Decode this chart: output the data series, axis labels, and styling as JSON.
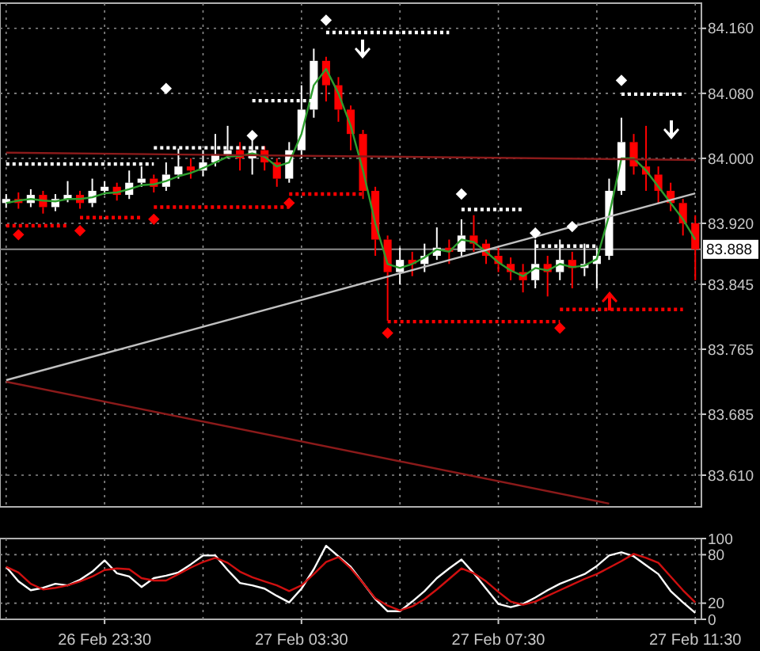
{
  "chart_data": [
    {
      "type": "candlestick",
      "grid": true,
      "tick_labels": "y",
      "categories": [
        null,
        null,
        null,
        null,
        null,
        null,
        null,
        null,
        null,
        null,
        null,
        null,
        null,
        null,
        null,
        null,
        null,
        null,
        null,
        null,
        null,
        null,
        null,
        null,
        null,
        null,
        null,
        null,
        null,
        null,
        null,
        null,
        null,
        null,
        null,
        null,
        null,
        null,
        null,
        null,
        null,
        null,
        null,
        null,
        null,
        null,
        null,
        null,
        null,
        null,
        null,
        null,
        null,
        null,
        null,
        null,
        null
      ],
      "ohlc": [
        [
          83.945,
          83.956,
          83.939,
          83.95
        ],
        [
          83.95,
          83.958,
          83.938,
          83.945
        ],
        [
          83.945,
          83.962,
          83.94,
          83.955
        ],
        [
          83.955,
          83.96,
          83.932,
          83.94
        ],
        [
          83.94,
          83.956,
          83.935,
          83.95
        ],
        [
          83.95,
          83.972,
          83.946,
          83.955
        ],
        [
          83.955,
          83.96,
          83.938,
          83.945
        ],
        [
          83.945,
          83.975,
          83.94,
          83.96
        ],
        [
          83.96,
          83.972,
          83.955,
          83.965
        ],
        [
          83.965,
          83.97,
          83.948,
          83.955
        ],
        [
          83.955,
          83.985,
          83.95,
          83.97
        ],
        [
          83.97,
          83.99,
          83.965,
          83.975
        ],
        [
          83.975,
          83.98,
          83.958,
          83.965
        ],
        [
          83.965,
          83.995,
          83.96,
          83.98
        ],
        [
          83.98,
          84.012,
          83.975,
          83.99
        ],
        [
          83.99,
          84.0,
          83.975,
          83.985
        ],
        [
          83.985,
          84.01,
          83.978,
          83.995
        ],
        [
          83.995,
          84.03,
          83.99,
          84.005
        ],
        [
          84.005,
          84.04,
          84.0,
          84.01
        ],
        [
          84.01,
          84.02,
          83.985,
          84.0
        ],
        [
          84.0,
          84.03,
          83.98,
          84.01
        ],
        [
          84.01,
          84.015,
          83.985,
          83.995
        ],
        [
          83.995,
          84.0,
          83.965,
          83.975
        ],
        [
          83.975,
          84.02,
          83.97,
          84.01
        ],
        [
          84.01,
          84.09,
          84.0,
          84.06
        ],
        [
          84.06,
          84.135,
          84.05,
          84.12
        ],
        [
          84.12,
          84.125,
          84.07,
          84.09
        ],
        [
          84.09,
          84.1,
          84.045,
          84.06
        ],
        [
          84.06,
          84.065,
          84.01,
          84.03
        ],
        [
          84.03,
          84.035,
          83.95,
          83.96
        ],
        [
          83.96,
          83.965,
          83.88,
          83.9
        ],
        [
          83.9,
          83.905,
          83.8,
          83.86
        ],
        [
          83.86,
          83.89,
          83.845,
          83.875
        ],
        [
          83.875,
          83.885,
          83.855,
          83.87
        ],
        [
          83.87,
          83.895,
          83.86,
          83.88
        ],
        [
          83.88,
          83.915,
          83.875,
          83.89
        ],
        [
          83.89,
          83.9,
          83.87,
          83.885
        ],
        [
          83.885,
          83.925,
          83.88,
          83.905
        ],
        [
          83.905,
          83.93,
          83.885,
          83.895
        ],
        [
          83.895,
          83.9,
          83.87,
          83.88
        ],
        [
          83.88,
          83.89,
          83.86,
          83.87
        ],
        [
          83.87,
          83.878,
          83.85,
          83.86
        ],
        [
          83.86,
          83.87,
          83.835,
          83.85
        ],
        [
          83.85,
          83.9,
          83.84,
          83.87
        ],
        [
          83.87,
          83.88,
          83.83,
          83.86
        ],
        [
          83.86,
          83.9,
          83.85,
          83.875
        ],
        [
          83.875,
          83.885,
          83.84,
          83.865
        ],
        [
          83.865,
          83.895,
          83.855,
          83.87
        ],
        [
          83.87,
          83.89,
          83.84,
          83.88
        ],
        [
          83.88,
          83.975,
          83.875,
          83.96
        ],
        [
          83.96,
          84.05,
          83.955,
          84.02
        ],
        [
          84.02,
          84.03,
          83.98,
          83.99
        ],
        [
          83.99,
          84.04,
          83.96,
          83.98
        ],
        [
          83.98,
          83.99,
          83.945,
          83.96
        ],
        [
          83.96,
          83.97,
          83.935,
          83.945
        ],
        [
          83.945,
          83.95,
          83.905,
          83.92
        ],
        [
          83.92,
          83.93,
          83.85,
          83.888
        ]
      ],
      "colors": [
        "#ffffff",
        "#ff0000",
        "#ffffff",
        "#ff0000",
        "#ffffff",
        "#ffffff",
        "#ff0000",
        "#ffffff",
        "#ffffff",
        "#ff0000",
        "#ffffff",
        "#ffffff",
        "#ff0000",
        "#ffffff",
        "#ffffff",
        "#ff0000",
        "#ffffff",
        "#ffffff",
        "#ffffff",
        "#ff0000",
        "#ffffff",
        "#ff0000",
        "#ff0000",
        "#ffffff",
        "#ffffff",
        "#ffffff",
        "#ff0000",
        "#ff0000",
        "#ff0000",
        "#ff0000",
        "#ff0000",
        "#ff0000",
        "#ffffff",
        "#ff0000",
        "#ffffff",
        "#ffffff",
        "#ff0000",
        "#ffffff",
        "#ff0000",
        "#ff0000",
        "#ff0000",
        "#ff0000",
        "#ff0000",
        "#ffffff",
        "#ff0000",
        "#ffffff",
        "#ff0000",
        "#ffffff",
        "#ffffff",
        "#ffffff",
        "#ffffff",
        "#ff0000",
        "#ff0000",
        "#ff0000",
        "#ff0000",
        "#ff0000",
        "#ff0000"
      ],
      "series": [
        {
          "type": "line",
          "color": "#2e9e2e",
          "values": [
            83.945,
            83.948,
            83.95,
            83.948,
            83.947,
            83.95,
            83.95,
            83.952,
            83.957,
            83.958,
            83.962,
            83.967,
            83.968,
            83.972,
            83.978,
            83.982,
            83.988,
            83.995,
            84.002,
            84.003,
            84.006,
            84.002,
            83.99,
            83.995,
            84.03,
            84.09,
            84.11,
            84.08,
            84.04,
            83.985,
            83.92,
            83.87,
            83.865,
            83.87,
            83.878,
            83.888,
            83.885,
            83.9,
            83.897,
            83.885,
            83.872,
            83.862,
            83.855,
            83.865,
            83.862,
            83.87,
            83.866,
            83.868,
            83.876,
            83.93,
            84.0,
            84.0,
            83.985,
            83.965,
            83.945,
            83.925,
            83.9
          ]
        },
        {
          "type": "line",
          "color": "#c0c0c0",
          "values": [
            83.727,
            null,
            null,
            null,
            null,
            null,
            null,
            null,
            null,
            null,
            null,
            null,
            null,
            null,
            null,
            null,
            null,
            null,
            null,
            null,
            null,
            null,
            null,
            null,
            null,
            null,
            null,
            null,
            null,
            null,
            null,
            null,
            null,
            null,
            null,
            null,
            null,
            null,
            null,
            null,
            null,
            null,
            null,
            null,
            null,
            null,
            null,
            null,
            null,
            null,
            null,
            null,
            null,
            null,
            null,
            null,
            83.957
          ]
        },
        {
          "type": "line",
          "color": "#8b1a1a",
          "values": [
            83.725,
            null,
            null,
            null,
            null,
            null,
            null,
            null,
            null,
            null,
            null,
            null,
            null,
            null,
            null,
            null,
            null,
            null,
            null,
            null,
            null,
            null,
            null,
            null,
            null,
            null,
            null,
            null,
            null,
            null,
            null,
            null,
            null,
            null,
            null,
            null,
            null,
            null,
            null,
            null,
            null,
            null,
            null,
            null,
            null,
            null,
            null,
            null,
            null,
            83.575,
            null,
            null,
            null,
            null,
            null,
            null,
            null
          ]
        },
        {
          "type": "line",
          "color": "#8b1a1a",
          "values": [
            84.007,
            null,
            null,
            null,
            null,
            null,
            null,
            null,
            null,
            null,
            null,
            null,
            null,
            null,
            null,
            null,
            null,
            null,
            null,
            null,
            null,
            null,
            null,
            null,
            null,
            null,
            null,
            null,
            null,
            null,
            null,
            null,
            null,
            null,
            null,
            null,
            null,
            null,
            null,
            null,
            null,
            null,
            null,
            null,
            null,
            null,
            null,
            null,
            null,
            null,
            null,
            null,
            null,
            null,
            null,
            null,
            83.998
          ]
        },
        {
          "type": "line",
          "color": "#ffffff",
          "line_style": "dotted",
          "values": [
            83.993,
            83.993,
            83.993,
            83.993,
            83.993,
            83.993,
            83.993,
            83.993,
            83.993,
            83.993,
            83.993,
            83.993,
            83.993,
            null,
            null,
            null,
            null,
            null,
            null,
            null,
            null,
            null,
            null,
            null,
            null,
            null,
            null,
            null,
            null,
            null,
            null,
            null,
            null,
            null,
            null,
            null,
            null,
            null,
            null,
            null,
            null,
            null,
            null,
            null,
            null,
            null,
            null,
            null,
            null,
            null,
            null,
            null,
            null,
            null,
            null,
            null,
            null
          ]
        },
        {
          "type": "line",
          "color": "#ffffff",
          "line_style": "dotted",
          "values": [
            null,
            null,
            null,
            null,
            null,
            null,
            null,
            null,
            null,
            null,
            null,
            null,
            84.013,
            84.013,
            84.013,
            84.013,
            84.013,
            84.013,
            84.013,
            84.013,
            84.013,
            84.013,
            null,
            null,
            null,
            null,
            null,
            null,
            null,
            null,
            null,
            null,
            null,
            null,
            null,
            null,
            null,
            null,
            null,
            null,
            null,
            null,
            null,
            null,
            null,
            null,
            null,
            null,
            null,
            null,
            null,
            null,
            null,
            null,
            null,
            null,
            null
          ]
        },
        {
          "type": "line",
          "color": "#ffffff",
          "line_style": "dotted",
          "values": [
            null,
            null,
            null,
            null,
            null,
            null,
            null,
            null,
            null,
            null,
            null,
            null,
            null,
            null,
            null,
            null,
            null,
            null,
            null,
            null,
            84.071,
            84.071,
            84.071,
            84.071,
            84.071,
            84.071,
            null,
            null,
            null,
            null,
            null,
            null,
            null,
            null,
            null,
            null,
            null,
            null,
            null,
            null,
            null,
            null,
            null,
            null,
            null,
            null,
            null,
            null,
            null,
            null,
            null,
            null,
            null,
            null,
            null,
            null,
            null
          ]
        },
        {
          "type": "line",
          "color": "#ffffff",
          "line_style": "dotted",
          "values": [
            null,
            null,
            null,
            null,
            null,
            null,
            null,
            null,
            null,
            null,
            null,
            null,
            null,
            null,
            null,
            null,
            null,
            null,
            null,
            null,
            null,
            null,
            null,
            null,
            null,
            null,
            84.155,
            84.155,
            84.155,
            84.155,
            84.155,
            84.155,
            84.155,
            84.155,
            84.155,
            84.155,
            84.155,
            null,
            null,
            null,
            null,
            null,
            null,
            null,
            null,
            null,
            null,
            null,
            null,
            null,
            null,
            null,
            null,
            null,
            null,
            null,
            null
          ]
        },
        {
          "type": "line",
          "color": "#ffffff",
          "line_style": "dotted",
          "values": [
            null,
            null,
            null,
            null,
            null,
            null,
            null,
            null,
            null,
            null,
            null,
            null,
            null,
            null,
            null,
            null,
            null,
            null,
            null,
            null,
            null,
            null,
            null,
            null,
            null,
            null,
            null,
            null,
            null,
            null,
            null,
            null,
            null,
            null,
            null,
            null,
            null,
            83.937,
            83.937,
            83.937,
            83.937,
            83.937,
            83.937,
            null,
            null,
            null,
            null,
            null,
            null,
            null,
            null,
            null,
            null,
            null,
            null,
            null,
            null
          ]
        },
        {
          "type": "line",
          "color": "#ffffff",
          "line_style": "dotted",
          "values": [
            null,
            null,
            null,
            null,
            null,
            null,
            null,
            null,
            null,
            null,
            null,
            null,
            null,
            null,
            null,
            null,
            null,
            null,
            null,
            null,
            null,
            null,
            null,
            null,
            null,
            null,
            null,
            null,
            null,
            null,
            null,
            null,
            null,
            null,
            null,
            null,
            null,
            null,
            null,
            null,
            null,
            null,
            null,
            83.892,
            83.892,
            83.892,
            83.892,
            83.892,
            83.892,
            null,
            null,
            null,
            null,
            null,
            null,
            null,
            null
          ]
        },
        {
          "type": "line",
          "color": "#ffffff",
          "line_style": "dotted",
          "values": [
            null,
            null,
            null,
            null,
            null,
            null,
            null,
            null,
            null,
            null,
            null,
            null,
            null,
            null,
            null,
            null,
            null,
            null,
            null,
            null,
            null,
            null,
            null,
            null,
            null,
            null,
            null,
            null,
            null,
            null,
            null,
            null,
            null,
            null,
            null,
            null,
            null,
            null,
            null,
            null,
            null,
            null,
            null,
            null,
            null,
            null,
            null,
            null,
            null,
            null,
            84.079,
            84.079,
            84.079,
            84.079,
            84.079,
            84.079,
            null
          ]
        },
        {
          "type": "line",
          "color": "#ff0000",
          "line_style": "dotted",
          "values": [
            83.917,
            83.917,
            83.917,
            83.917,
            83.917,
            83.917,
            null,
            null,
            null,
            null,
            null,
            null,
            null,
            null,
            null,
            null,
            null,
            null,
            null,
            null,
            null,
            null,
            null,
            null,
            null,
            null,
            null,
            null,
            null,
            null,
            null,
            null,
            null,
            null,
            null,
            null,
            null,
            null,
            null,
            null,
            null,
            null,
            null,
            null,
            null,
            null,
            null,
            null,
            null,
            null,
            null,
            null,
            null,
            null,
            null,
            null,
            null
          ]
        },
        {
          "type": "line",
          "color": "#ff0000",
          "line_style": "dotted",
          "values": [
            null,
            null,
            null,
            null,
            null,
            null,
            83.927,
            83.927,
            83.927,
            83.927,
            83.927,
            83.927,
            null,
            null,
            null,
            null,
            null,
            null,
            null,
            null,
            null,
            null,
            null,
            null,
            null,
            null,
            null,
            null,
            null,
            null,
            null,
            null,
            null,
            null,
            null,
            null,
            null,
            null,
            null,
            null,
            null,
            null,
            null,
            null,
            null,
            null,
            null,
            null,
            null,
            null,
            null,
            null,
            null,
            null,
            null,
            null,
            null
          ]
        },
        {
          "type": "line",
          "color": "#ff0000",
          "line_style": "dotted",
          "values": [
            null,
            null,
            null,
            null,
            null,
            null,
            null,
            null,
            null,
            null,
            null,
            null,
            83.94,
            83.94,
            83.94,
            83.94,
            83.94,
            83.94,
            83.94,
            83.94,
            83.94,
            83.94,
            83.94,
            83.94,
            null,
            null,
            null,
            null,
            null,
            null,
            null,
            null,
            null,
            null,
            null,
            null,
            null,
            null,
            null,
            null,
            null,
            null,
            null,
            null,
            null,
            null,
            null,
            null,
            null,
            null,
            null,
            null,
            null,
            null,
            null,
            null,
            null
          ]
        },
        {
          "type": "line",
          "color": "#ff0000",
          "line_style": "dotted",
          "values": [
            null,
            null,
            null,
            null,
            null,
            null,
            null,
            null,
            null,
            null,
            null,
            null,
            null,
            null,
            null,
            null,
            null,
            null,
            null,
            null,
            null,
            null,
            null,
            83.956,
            83.956,
            83.956,
            83.956,
            83.956,
            83.956,
            83.956,
            null,
            null,
            null,
            null,
            null,
            null,
            null,
            null,
            null,
            null,
            null,
            null,
            null,
            null,
            null,
            null,
            null,
            null,
            null,
            null,
            null,
            null,
            null,
            null,
            null,
            null,
            null
          ]
        },
        {
          "type": "line",
          "color": "#ff0000",
          "line_style": "dotted",
          "values": [
            null,
            null,
            null,
            null,
            null,
            null,
            null,
            null,
            null,
            null,
            null,
            null,
            null,
            null,
            null,
            null,
            null,
            null,
            null,
            null,
            null,
            null,
            null,
            null,
            null,
            null,
            null,
            null,
            null,
            null,
            null,
            83.799,
            83.799,
            83.799,
            83.799,
            83.799,
            83.799,
            83.799,
            83.799,
            83.799,
            83.799,
            83.799,
            83.799,
            83.799,
            83.799,
            83.799,
            null,
            null,
            null,
            null,
            null,
            null,
            null,
            null,
            null,
            null,
            null
          ]
        },
        {
          "type": "line",
          "color": "#ff0000",
          "line_style": "dotted",
          "values": [
            null,
            null,
            null,
            null,
            null,
            null,
            null,
            null,
            null,
            null,
            null,
            null,
            null,
            null,
            null,
            null,
            null,
            null,
            null,
            null,
            null,
            null,
            null,
            null,
            null,
            null,
            null,
            null,
            null,
            null,
            null,
            null,
            null,
            null,
            null,
            null,
            null,
            null,
            null,
            null,
            null,
            null,
            null,
            null,
            null,
            83.814,
            83.814,
            83.814,
            83.814,
            83.814,
            83.814,
            83.814,
            83.814,
            83.814,
            83.814,
            83.814,
            null
          ]
        },
        {
          "type": "scatter",
          "color": "#ffffff",
          "marker": "diamond",
          "values": [
            null,
            null,
            null,
            null,
            null,
            null,
            null,
            null,
            null,
            null,
            null,
            null,
            null,
            84.086,
            null,
            null,
            null,
            null,
            null,
            null,
            84.028,
            null,
            null,
            null,
            null,
            null,
            84.17,
            null,
            null,
            null,
            null,
            null,
            null,
            null,
            null,
            null,
            null,
            83.956,
            null,
            null,
            null,
            null,
            null,
            83.908,
            null,
            null,
            83.916,
            null,
            null,
            null,
            84.096,
            null,
            null,
            null,
            null,
            null,
            null
          ]
        },
        {
          "type": "scatter",
          "color": "#ff0000",
          "marker": "diamond",
          "values": [
            null,
            83.906,
            null,
            null,
            null,
            null,
            83.911,
            null,
            null,
            null,
            null,
            null,
            83.925,
            null,
            null,
            null,
            null,
            null,
            null,
            null,
            null,
            null,
            null,
            83.945,
            null,
            null,
            null,
            null,
            null,
            null,
            null,
            83.785,
            null,
            null,
            null,
            null,
            null,
            null,
            null,
            null,
            null,
            null,
            null,
            null,
            null,
            83.791,
            null,
            null,
            null,
            null,
            null,
            null,
            null,
            null,
            null,
            null,
            null
          ]
        }
      ],
      "ylim": [
        83.571,
        84.191
      ],
      "yticks": [
        {
          "value": 84.16,
          "label": "84.160"
        },
        {
          "value": 84.08,
          "label": "84.080"
        },
        {
          "value": 84.0,
          "label": "84.000"
        },
        {
          "value": 83.92,
          "label": "83.920"
        },
        {
          "value": 83.845,
          "label": "83.845"
        },
        {
          "value": 83.765,
          "label": "83.765"
        },
        {
          "value": 83.685,
          "label": "83.685"
        },
        {
          "value": 83.61,
          "label": "83.610"
        }
      ],
      "ref_lines": [
        {
          "axis": "y",
          "value": 83.888,
          "label": "83.888",
          "color": "#8c8c8c"
        }
      ]
    },
    {
      "type": "line",
      "grid": true,
      "categories": [
        null,
        null,
        null,
        null,
        null,
        null,
        null,
        null,
        "26 Feb 23:30",
        null,
        null,
        null,
        null,
        null,
        null,
        null,
        null,
        null,
        null,
        null,
        null,
        null,
        null,
        null,
        "27 Feb 03:30",
        null,
        null,
        null,
        null,
        null,
        null,
        null,
        null,
        null,
        null,
        null,
        null,
        null,
        null,
        null,
        "27 Feb 07:30",
        null,
        null,
        null,
        null,
        null,
        null,
        null,
        null,
        null,
        null,
        null,
        null,
        null,
        null,
        null,
        "27 Feb 11:30"
      ],
      "series": [
        {
          "color": "#ffffff",
          "values": [
            65,
            47,
            36,
            39,
            44,
            42,
            49,
            59,
            73,
            57,
            53,
            40,
            51,
            54,
            58,
            68,
            79,
            79,
            61,
            45,
            42,
            38,
            29,
            21,
            38,
            62,
            91,
            78,
            65,
            45,
            25,
            10,
            10,
            22,
            35,
            51,
            63,
            74,
            57,
            38,
            19,
            15,
            19,
            27,
            36,
            44,
            50,
            56,
            66,
            79,
            83,
            78,
            67,
            56,
            35,
            21,
            8
          ]
        },
        {
          "color": "#d01010",
          "values": [
            65,
            58,
            44,
            37,
            39,
            42,
            47,
            53,
            61,
            63,
            62,
            51,
            48,
            48,
            56,
            64,
            71,
            76,
            70,
            59,
            52,
            47,
            42,
            35,
            42,
            56,
            71,
            77,
            63,
            45,
            26,
            17,
            11,
            16,
            25,
            37,
            50,
            63,
            57,
            47,
            34,
            22,
            18,
            22,
            29,
            36,
            43,
            50,
            56,
            64,
            72,
            81,
            76,
            70,
            53,
            36,
            21
          ]
        }
      ],
      "ylim": [
        0,
        100
      ],
      "yticks": [
        100,
        80,
        20,
        0
      ]
    }
  ]
}
